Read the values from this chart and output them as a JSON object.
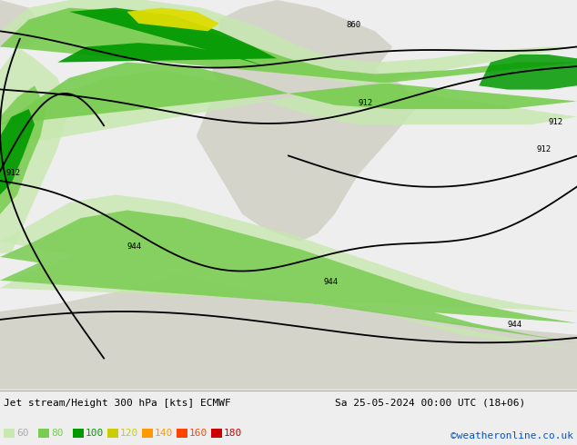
{
  "title_left": "Jet stream/Height 300 hPa [kts] ECMWF",
  "title_right": "Sa 25-05-2024 00:00 UTC (18+06)",
  "copyright": "©weatheronline.co.uk",
  "legend_values": [
    60,
    80,
    100,
    120,
    140,
    160,
    180
  ],
  "legend_colors": [
    "#c8e8b0",
    "#78cc50",
    "#009900",
    "#cccc00",
    "#ff9900",
    "#ff4400",
    "#cc0000"
  ],
  "figsize": [
    6.34,
    4.9
  ],
  "dpi": 100,
  "map_bg": "#dde8dd",
  "sea_bg": "#d8d8d8",
  "bottom_bg": "#eeeeee",
  "label_colors_legend": [
    "#aaaaaa",
    "#78cc50",
    "#009900",
    "#cccc00",
    "#ff9900",
    "#ff4400",
    "#cc0000"
  ]
}
